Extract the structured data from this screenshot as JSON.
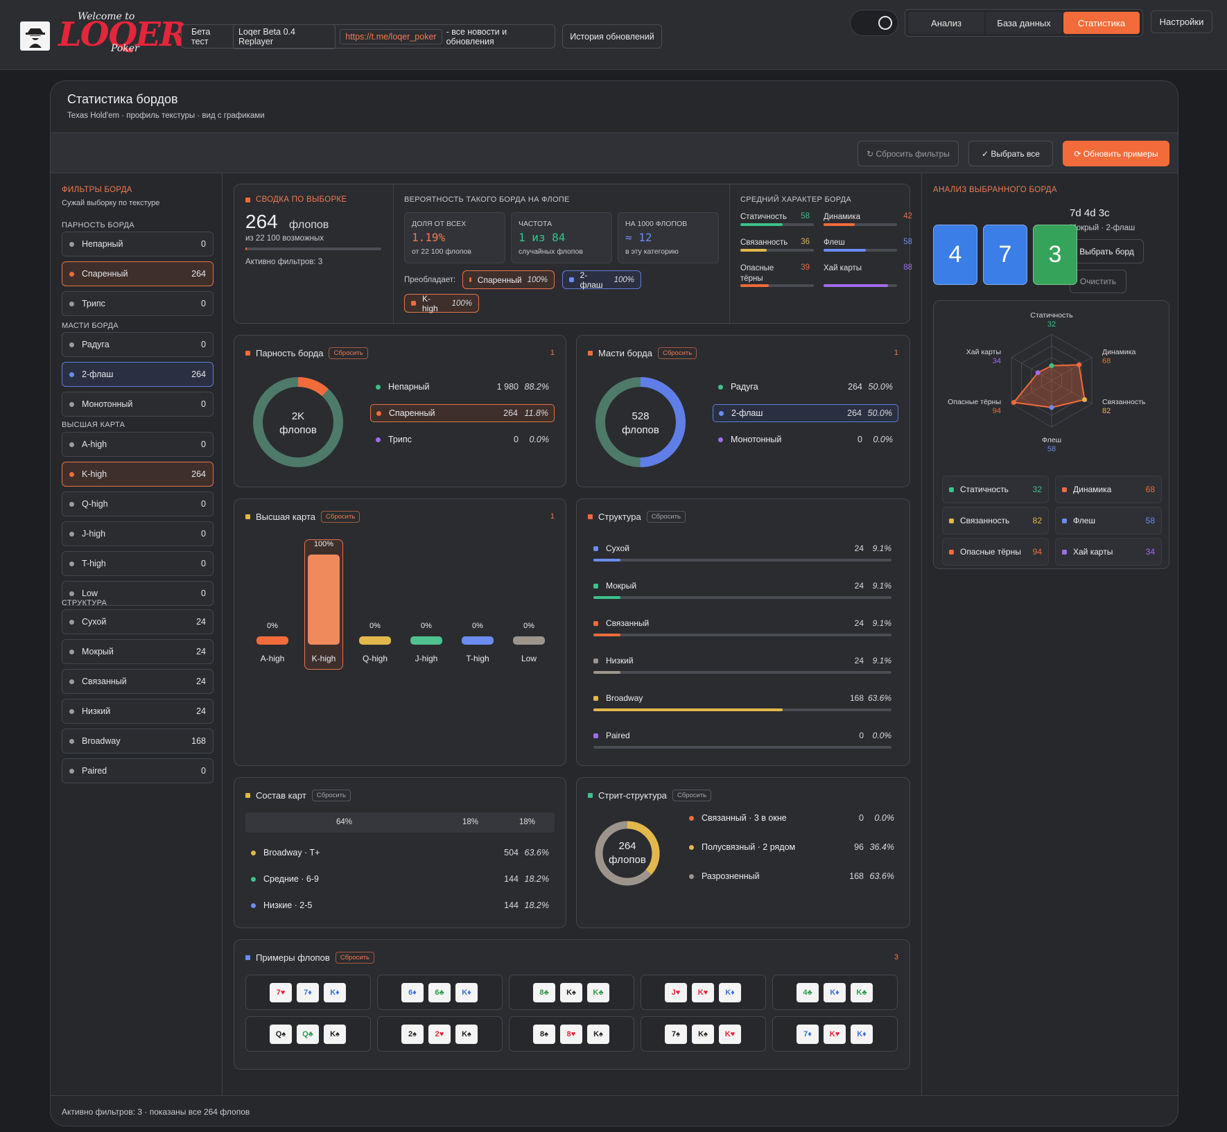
{
  "topbar": {
    "beta_label": "Бета тест",
    "version": "Loqer Beta 0.4 Replayer",
    "link": "https://t.me/loqer_poker",
    "news": "- все новости и обновления",
    "history": "История обновлений",
    "nav": [
      "Анализ",
      "База данных",
      "Статистика"
    ],
    "settings": "Настройки",
    "logo_welcome": "Welcome to",
    "logo_main": "LOQER",
    "logo_poker": "Poker"
  },
  "page": {
    "title": "Статистика бордов",
    "subtitle": "Texas Hold'em · профиль текстуры · вид с графиками"
  },
  "toolbar": {
    "reset": "↻ Сбросить фильтры",
    "select_all": "✓ Выбрать все",
    "refresh": "⟳ Обновить примеры"
  },
  "sidebar": {
    "header": "ФИЛЬТРЫ БОРДА",
    "sub": "Сужай выборку по текстуре",
    "sections": [
      {
        "label": "ПАРНОСТЬ БОРДА",
        "items": [
          {
            "name": "Непарный",
            "count": "0"
          },
          {
            "name": "Спаренный",
            "count": "264"
          },
          {
            "name": "Трипс",
            "count": "0"
          }
        ]
      },
      {
        "label": "МАСТИ БОРДА",
        "items": [
          {
            "name": "Радуга",
            "count": "0"
          },
          {
            "name": "2-флаш",
            "count": "264"
          },
          {
            "name": "Монотонный",
            "count": "0"
          }
        ]
      },
      {
        "label": "ВЫСШАЯ КАРТА",
        "items": [
          {
            "name": "A-high",
            "count": "0"
          },
          {
            "name": "K-high",
            "count": "264"
          },
          {
            "name": "Q-high",
            "count": "0"
          },
          {
            "name": "J-high",
            "count": "0"
          },
          {
            "name": "T-high",
            "count": "0"
          },
          {
            "name": "Low",
            "count": "0"
          }
        ]
      },
      {
        "label": "СТРУКТУРА",
        "items": [
          {
            "name": "Сухой",
            "count": "24"
          },
          {
            "name": "Мокрый",
            "count": "24"
          },
          {
            "name": "Связанный",
            "count": "24"
          },
          {
            "name": "Низкий",
            "count": "24"
          },
          {
            "name": "Broadway",
            "count": "168"
          },
          {
            "name": "Paired",
            "count": "0"
          }
        ]
      }
    ]
  },
  "summary": {
    "title": "СВОДКА ПО ВЫБОРКЕ",
    "count": "264",
    "unit": "флопов",
    "of": "из 22 100 возможных",
    "active": "Активно фильтров: 3",
    "fill": 0.012
  },
  "prob": {
    "title": "ВЕРОЯТНОСТЬ ТАКОГО БОРДА НА ФЛОПЕ",
    "cells": [
      {
        "label": "ДОЛЯ ОТ ВСЕХ",
        "value": "1.19%",
        "note": "от 22 100 флопов"
      },
      {
        "label": "ЧАСТОТА",
        "value": "1 из 84",
        "note": "случайных флопов"
      },
      {
        "label": "НА 1000 ФЛОПОВ",
        "value": "≈ 12",
        "note": "в эту категорию"
      }
    ],
    "prevails": "Преобладает:",
    "chips": [
      {
        "name": "Спаренный",
        "pct": "100%"
      },
      {
        "name": "2-флаш",
        "pct": "100%"
      },
      {
        "name": "K-high",
        "pct": "100%"
      }
    ]
  },
  "avg": {
    "title": "СРЕДНИЙ ХАРАКТЕР БОРДА",
    "items": [
      {
        "name": "Статичность",
        "val": "58",
        "f": 0.58,
        "color": "#3cc28a"
      },
      {
        "name": "Динамика",
        "val": "42",
        "f": 0.42,
        "color": "#f26b3a"
      },
      {
        "name": "Связанность",
        "val": "36",
        "f": 0.36,
        "color": "#e2b84c"
      },
      {
        "name": "Флеш",
        "val": "58",
        "f": 0.58,
        "color": "#6b8cf0"
      },
      {
        "name": "Опасные тёрны",
        "val": "39",
        "f": 0.39,
        "color": "#f26b3a"
      },
      {
        "name": "Хай карты",
        "val": "88",
        "f": 0.88,
        "color": "#a06cf0"
      }
    ]
  },
  "pairing": {
    "title": "Парность борда",
    "reset": "Сбросить",
    "num": "1",
    "center1": "2K",
    "center2": "флопов",
    "rows": [
      {
        "name": "Непарный",
        "v": "1 980",
        "p": "88.2%",
        "color": "#3cc28a"
      },
      {
        "name": "Спаренный",
        "v": "264",
        "p": "11.8%",
        "color": "#f26b3a"
      },
      {
        "name": "Трипс",
        "v": "0",
        "p": "0.0%",
        "color": "#a06cf0"
      }
    ],
    "frac": 0.118
  },
  "suits": {
    "title": "Масти борда",
    "reset": "Сбросить",
    "num": "1",
    "center1": "528",
    "center2": "флопов",
    "rows": [
      {
        "name": "Радуга",
        "v": "264",
        "p": "50.0%",
        "color": "#3cc28a"
      },
      {
        "name": "2-флаш",
        "v": "264",
        "p": "50.0%",
        "color": "#6b8cf0"
      },
      {
        "name": "Монотонный",
        "v": "0",
        "p": "0.0%",
        "color": "#a06cf0"
      }
    ],
    "frac": 0.5
  },
  "highcard": {
    "title": "Высшая карта",
    "reset": "Сбросить",
    "num": "1",
    "bars": [
      {
        "name": "A-high",
        "pct": "0%",
        "v": 0,
        "color": "#f26b3a"
      },
      {
        "name": "K-high",
        "pct": "100%",
        "v": 1,
        "color": "#ef8a5c"
      },
      {
        "name": "Q-high",
        "pct": "0%",
        "v": 0,
        "color": "#e2b84c"
      },
      {
        "name": "J-high",
        "pct": "0%",
        "v": 0,
        "color": "#4fc28f"
      },
      {
        "name": "T-high",
        "pct": "0%",
        "v": 0,
        "color": "#6b8cf0"
      },
      {
        "name": "Low",
        "pct": "0%",
        "v": 0,
        "color": "#9d958c"
      }
    ]
  },
  "structure": {
    "title": "Структура",
    "reset": "Сбросить",
    "rows": [
      {
        "name": "Сухой",
        "v": "24",
        "p": "9.1%",
        "f": 0.091,
        "color": "#6b8cf0"
      },
      {
        "name": "Мокрый",
        "v": "24",
        "p": "9.1%",
        "f": 0.091,
        "color": "#3cc28a"
      },
      {
        "name": "Связанный",
        "v": "24",
        "p": "9.1%",
        "f": 0.091,
        "color": "#f26b3a"
      },
      {
        "name": "Низкий",
        "v": "24",
        "p": "9.1%",
        "f": 0.091,
        "color": "#9d958c"
      },
      {
        "name": "Broadway",
        "v": "168",
        "p": "63.6%",
        "f": 0.636,
        "color": "#e2b84c"
      },
      {
        "name": "Paired",
        "v": "0",
        "p": "0.0%",
        "f": 0,
        "color": "#a06cf0"
      }
    ]
  },
  "composition": {
    "title": "Состав карт",
    "reset": "Сбросить",
    "segments": [
      "64%",
      "18%",
      "18%"
    ],
    "rows": [
      {
        "name": "Broadway · T+",
        "v": "504",
        "p": "63.6%",
        "color": "#e2b84c"
      },
      {
        "name": "Средние · 6-9",
        "v": "144",
        "p": "18.2%",
        "color": "#3cc28a"
      },
      {
        "name": "Низкие · 2-5",
        "v": "144",
        "p": "18.2%",
        "color": "#6b8cf0"
      }
    ]
  },
  "straight": {
    "title": "Стрит-структура",
    "reset": "Сбросить",
    "center1": "264",
    "center2": "флопов",
    "rows": [
      {
        "name": "Связанный · 3 в окне",
        "v": "0",
        "p": "0.0%",
        "color": "#f26b3a"
      },
      {
        "name": "Полусвязный · 2 рядом",
        "v": "96",
        "p": "36.4%",
        "color": "#e2b84c"
      },
      {
        "name": "Разрозненный",
        "v": "168",
        "p": "63.6%",
        "color": "#9d958c"
      }
    ],
    "frac": 0.364
  },
  "examples": {
    "title": "Примеры флопов",
    "reset": "Сбросить",
    "num": "3",
    "boards": [
      [
        [
          "7♥",
          "#e5253a"
        ],
        [
          "7♦",
          "#3d6fe0"
        ],
        [
          "K♦",
          "#3d6fe0"
        ]
      ],
      [
        [
          "6♦",
          "#3d6fe0"
        ],
        [
          "6♣",
          "#2f9a4e"
        ],
        [
          "K♦",
          "#3d6fe0"
        ]
      ],
      [
        [
          "8♣",
          "#2f9a4e"
        ],
        [
          "K♠",
          "#222"
        ],
        [
          "K♣",
          "#2f9a4e"
        ]
      ],
      [
        [
          "J♥",
          "#e5253a"
        ],
        [
          "K♥",
          "#e5253a"
        ],
        [
          "K♦",
          "#3d6fe0"
        ]
      ],
      [
        [
          "4♣",
          "#2f9a4e"
        ],
        [
          "K♦",
          "#3d6fe0"
        ],
        [
          "K♣",
          "#2f9a4e"
        ]
      ],
      [
        [
          "Q♠",
          "#222"
        ],
        [
          "Q♣",
          "#2f9a4e"
        ],
        [
          "K♠",
          "#222"
        ]
      ],
      [
        [
          "2♠",
          "#222"
        ],
        [
          "2♥",
          "#e5253a"
        ],
        [
          "K♠",
          "#222"
        ]
      ],
      [
        [
          "8♠",
          "#222"
        ],
        [
          "8♥",
          "#e5253a"
        ],
        [
          "K♠",
          "#222"
        ]
      ],
      [
        [
          "7♠",
          "#222"
        ],
        [
          "K♠",
          "#222"
        ],
        [
          "K♥",
          "#e5253a"
        ]
      ],
      [
        [
          "7♦",
          "#3d6fe0"
        ],
        [
          "K♥",
          "#e5253a"
        ],
        [
          "K♦",
          "#3d6fe0"
        ]
      ]
    ]
  },
  "right": {
    "title": "АНАЛИЗ ВЫБРАННОГО БОРДА",
    "board": "7d 4d 3c",
    "desc": "Мокрый · 2-флаш",
    "select": "Выбрать борд",
    "clear": "Очистить",
    "cards": [
      {
        "rank": "4",
        "color": "#3b7ee8"
      },
      {
        "rank": "7",
        "color": "#3b7ee8"
      },
      {
        "rank": "3",
        "color": "#36a35a"
      }
    ],
    "radar": [
      {
        "name": "Статичность",
        "v": 32,
        "color": "#3cc28a"
      },
      {
        "name": "Динамика",
        "v": 68,
        "color": "#f26b3a"
      },
      {
        "name": "Связанность",
        "v": 82,
        "color": "#e2b84c"
      },
      {
        "name": "Флеш",
        "v": 58,
        "color": "#6b8cf0"
      },
      {
        "name": "Опасные тёрны",
        "v": 94,
        "color": "#f26b3a"
      },
      {
        "name": "Хай карты",
        "v": 34,
        "color": "#a06cf0"
      }
    ]
  },
  "footer": "Активно фильтров: 3 · показаны все 264 флопов"
}
